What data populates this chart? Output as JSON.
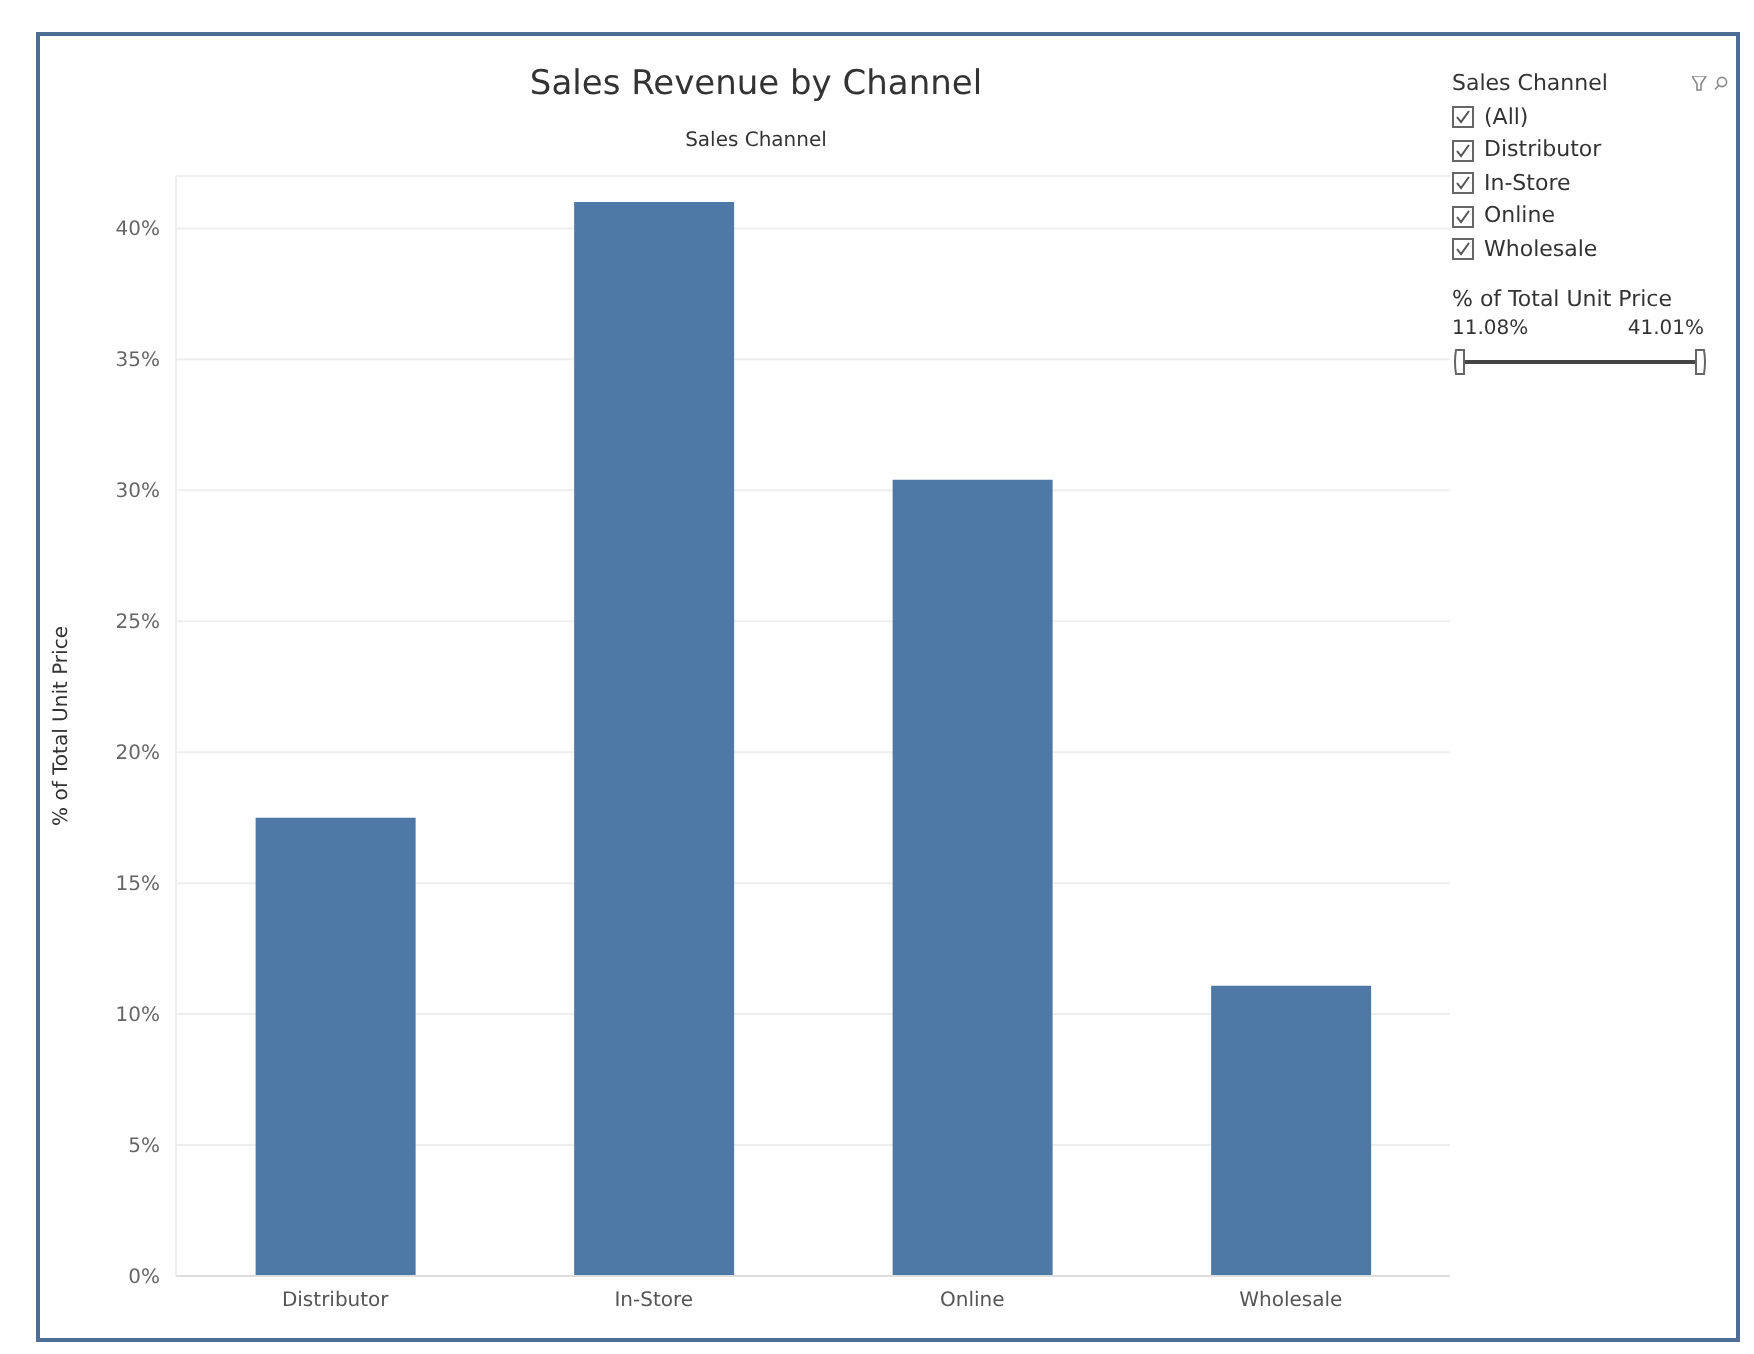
{
  "chart_data": {
    "type": "bar",
    "title": "Sales Revenue by Channel",
    "xlabel": "Sales Channel",
    "ylabel": "% of Total Unit Price",
    "categories": [
      "Distributor",
      "In-Store",
      "Online",
      "Wholesale"
    ],
    "values": [
      17.5,
      41.01,
      30.4,
      11.08
    ],
    "color": "#4e79a7",
    "ylim": [
      0,
      42
    ],
    "yticks": [
      {
        "value": 0,
        "label": "0%"
      },
      {
        "value": 5,
        "label": "5%"
      },
      {
        "value": 10,
        "label": "10%"
      },
      {
        "value": 15,
        "label": "15%"
      },
      {
        "value": 20,
        "label": "20%"
      },
      {
        "value": 25,
        "label": "25%"
      },
      {
        "value": 30,
        "label": "30%"
      },
      {
        "value": 35,
        "label": "35%"
      },
      {
        "value": 40,
        "label": "40%"
      }
    ],
    "grid": "y",
    "annotations": [
      "Sales Channel",
      "(All)",
      "Distributor",
      "In-Store",
      "Online",
      "Wholesale",
      "% of Total Unit Price",
      "11.08%",
      "41.01%"
    ]
  }
}
